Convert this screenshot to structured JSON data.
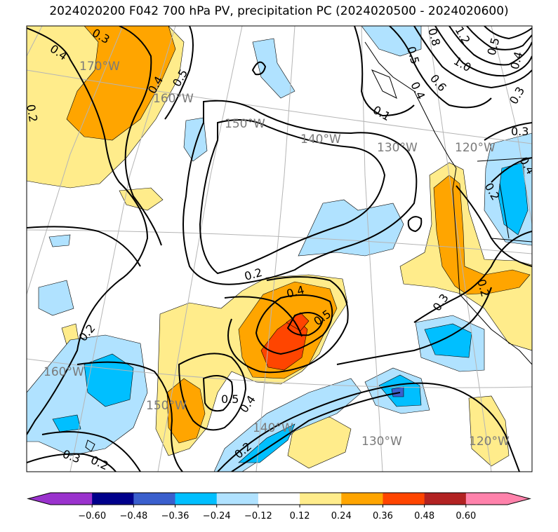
{
  "title": "2024020200 F042 700 hPa PV, precipitation PC (2024020500 - 2024020600)",
  "colors": {
    "neg_060": "#9a32cd",
    "neg_048": "#00008b",
    "neg_036": "#3a5fcd",
    "neg_024": "#00bfff",
    "neg_012": "#b0e2ff",
    "zero": "#ffffff",
    "pos_012": "#ffec8b",
    "pos_024": "#ffa500",
    "pos_036": "#ff4500",
    "pos_048": "#b22222",
    "pos_060": "#ff82ab",
    "grid": "#b5b5b5",
    "contour": "#000000",
    "lon_label": "#7a7a7a"
  },
  "colorbar": {
    "ticks": [
      "−0.60",
      "−0.48",
      "−0.36",
      "−0.24",
      "−0.12",
      "0.12",
      "0.24",
      "0.36",
      "0.48",
      "0.60"
    ]
  },
  "longitude_labels": {
    "top_170": "170°W",
    "top_160": "160°W",
    "top_150": "150°W",
    "top_140": "140°W",
    "top_130": "130°W",
    "top_120": "120°W",
    "bot_160": "160°W",
    "bot_150": "150°W",
    "bot_140": "140°W",
    "bot_130": "130°W",
    "bot_120": "120°W"
  },
  "contour_labels": {
    "c1": "0.4",
    "c2": "0.5",
    "c3": "0.4",
    "c4": "0.2",
    "c5": "0.2",
    "c6": "0.4",
    "c7": "0.5",
    "c8": "0.2",
    "c9": "0.5",
    "c10": "0.4",
    "c11": "0.2",
    "c12": "0.3",
    "c13": "0.2",
    "c14": "0.3",
    "c15": "0.2",
    "c16": "0.1",
    "c17": "0.5",
    "c18": "0.4",
    "c19": "0.6",
    "c20": "0.8",
    "c21": "1.0",
    "c22": "1.2",
    "c23": "0.3",
    "c24": "0.3",
    "c25": "0.2",
    "c26": "0.4",
    "c27": "0.5",
    "c28": "0.3",
    "c29": "0.4"
  }
}
